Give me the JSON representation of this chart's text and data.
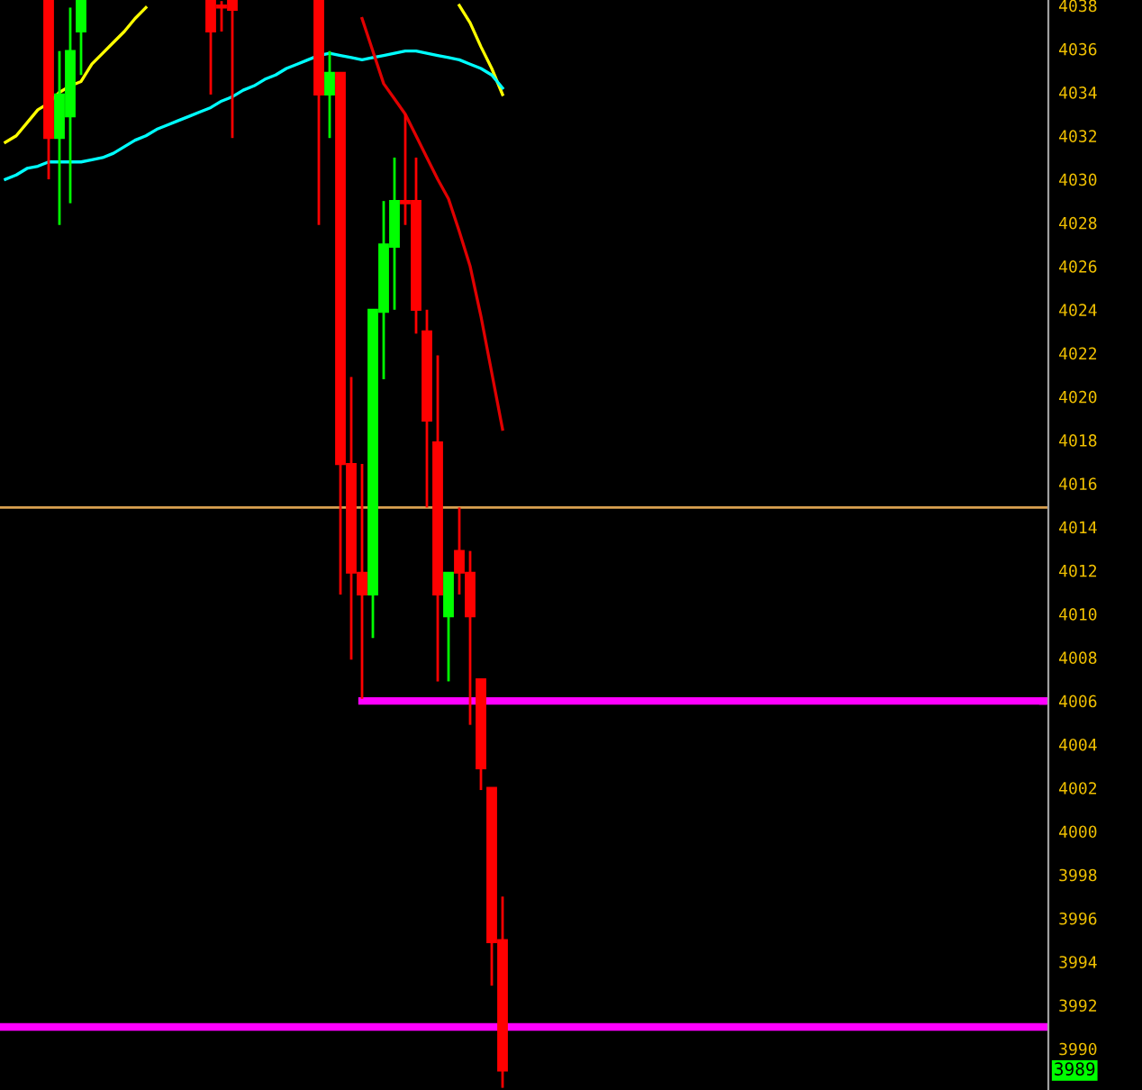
{
  "chart_data": {
    "type": "candlestick",
    "categories": [
      null,
      null,
      null,
      null,
      null,
      null,
      null,
      null,
      null,
      null,
      null,
      null,
      null,
      null,
      null,
      null,
      null,
      null,
      null,
      null,
      null,
      null,
      null,
      null,
      null,
      null,
      null,
      null,
      null,
      null,
      null,
      null,
      null,
      null,
      null,
      null,
      null,
      null,
      null,
      null,
      null,
      null,
      null,
      null,
      null,
      null,
      null,
      null,
      null,
      null,
      null,
      null,
      null,
      null,
      null,
      null,
      null,
      null,
      null,
      null,
      null,
      null,
      null,
      null,
      null,
      null,
      null,
      null,
      null,
      null,
      null,
      null,
      null,
      null,
      null,
      null,
      null,
      null,
      null,
      null,
      null,
      null,
      null,
      null,
      null,
      null,
      null,
      null,
      null,
      null,
      null,
      null,
      null,
      null,
      null,
      null,
      null
    ],
    "ohlc": [
      null,
      null,
      null,
      null,
      [
        4038.2,
        4038.2,
        4030.0,
        4031.9
      ],
      [
        4031.9,
        4035.9,
        4027.9,
        4033.9
      ],
      [
        4032.9,
        4037.9,
        4028.9,
        4035.9
      ],
      [
        4036.8,
        4038.2,
        4034.8,
        4038.2
      ],
      null,
      null,
      null,
      null,
      null,
      null,
      null,
      null,
      null,
      null,
      null,
      [
        4038.2,
        4038.2,
        4033.9,
        4036.8
      ],
      [
        4038.0,
        4038.2,
        4036.8,
        4037.9
      ],
      [
        4038.2,
        4038.2,
        4031.9,
        4037.8
      ],
      null,
      null,
      null,
      null,
      null,
      null,
      null,
      [
        4038.2,
        4038.2,
        4027.9,
        4033.9
      ],
      [
        4033.9,
        4035.9,
        4031.9,
        4034.9
      ],
      [
        4034.9,
        4034.9,
        4010.9,
        4016.9
      ],
      [
        4016.9,
        4020.9,
        4007.9,
        4011.9
      ],
      [
        4011.9,
        4016.9,
        4006.1,
        4010.9
      ],
      [
        4010.9,
        4024.0,
        4008.9,
        4024.0
      ],
      [
        4023.9,
        4029.0,
        4020.8,
        4027.0
      ],
      [
        4026.9,
        4031.0,
        4024.0,
        4029.0
      ],
      [
        4029.0,
        4033.0,
        4027.9,
        4028.9
      ],
      [
        4029.0,
        4031.0,
        4022.9,
        4024.0
      ],
      [
        4023.0,
        4024.0,
        4014.9,
        4018.9
      ],
      [
        4017.9,
        4021.9,
        4006.9,
        4010.9
      ],
      [
        4009.9,
        4011.9,
        4006.9,
        4011.9
      ],
      [
        4012.9,
        4014.9,
        4010.9,
        4011.9
      ],
      [
        4011.9,
        4012.9,
        4004.9,
        4009.9
      ],
      [
        4007.0,
        4007.0,
        4001.9,
        4002.9
      ],
      [
        4002.0,
        4002.0,
        3992.9,
        3994.9
      ],
      [
        3995.0,
        3997.0,
        3988.2,
        3989
      ],
      null,
      null,
      null,
      null,
      null,
      null,
      null,
      null,
      null,
      null,
      null,
      null,
      null,
      null,
      null,
      null,
      null,
      null,
      null,
      null,
      null,
      null,
      null,
      null,
      null,
      null,
      null,
      null,
      null,
      null,
      null,
      null,
      null,
      null,
      null,
      null,
      null,
      null,
      null,
      null,
      null,
      null,
      null,
      null,
      null,
      null,
      null,
      null,
      null,
      null
    ],
    "series": [
      {
        "type": "line",
        "color": "#ffff00",
        "values": [
          4031.7,
          4032.0,
          4032.6,
          4033.2,
          4033.5,
          4034.0,
          4034.3,
          4034.5,
          4035.3,
          4035.8,
          4036.3,
          4036.8,
          4037.4,
          4037.9,
          null,
          null,
          null,
          null,
          null,
          null,
          null,
          null,
          null,
          null,
          null,
          null,
          null,
          null,
          null,
          null,
          null,
          null,
          null,
          null,
          null,
          null,
          null,
          null,
          null,
          null,
          null,
          null,
          4038.0,
          4037.2,
          4036.1,
          4035.1,
          4033.9,
          null,
          null,
          null,
          null,
          null,
          null,
          null,
          null,
          null,
          null,
          null,
          null,
          null,
          null,
          null,
          null,
          null,
          null,
          null,
          null,
          null,
          null,
          null,
          null,
          null,
          null,
          null,
          null,
          null,
          null,
          null,
          null,
          null,
          null,
          null,
          null,
          null,
          null,
          null,
          null,
          null,
          null,
          null,
          null,
          null,
          null,
          null,
          null,
          null,
          null
        ]
      },
      {
        "type": "line",
        "color": "#00ffff",
        "values": [
          4030.0,
          4030.2,
          4030.5,
          4030.6,
          4030.8,
          4030.8,
          4030.8,
          4030.8,
          4030.9,
          4031.0,
          4031.2,
          4031.5,
          4031.8,
          4032.0,
          4032.3,
          4032.5,
          4032.7,
          4032.9,
          4033.1,
          4033.3,
          4033.6,
          4033.8,
          4034.1,
          4034.3,
          4034.6,
          4034.8,
          4035.1,
          4035.3,
          4035.5,
          4035.7,
          4035.8,
          4035.7,
          4035.6,
          4035.5,
          4035.6,
          4035.7,
          4035.8,
          4035.9,
          4035.9,
          4035.8,
          4035.7,
          4035.6,
          4035.5,
          4035.3,
          4035.1,
          4034.8,
          4034.2,
          null,
          null,
          null,
          null,
          null,
          null,
          null,
          null,
          null,
          null,
          null,
          null,
          null,
          null,
          null,
          null,
          null,
          null,
          null,
          null,
          null,
          null,
          null,
          null,
          null,
          null,
          null,
          null,
          null,
          null,
          null,
          null,
          null,
          null,
          null,
          null,
          null,
          null,
          null,
          null,
          null,
          null,
          null,
          null,
          null,
          null,
          null,
          null,
          null,
          null
        ]
      },
      {
        "type": "line",
        "color": "#e00000",
        "values": [
          null,
          null,
          null,
          null,
          null,
          null,
          null,
          null,
          null,
          null,
          null,
          null,
          null,
          null,
          null,
          null,
          null,
          null,
          null,
          null,
          null,
          null,
          null,
          null,
          null,
          null,
          null,
          null,
          null,
          null,
          null,
          null,
          null,
          4037.4,
          4035.9,
          4034.4,
          4033.7,
          4033.0,
          4032.0,
          4031.0,
          4030.0,
          4029.1,
          4027.6,
          4026.0,
          4023.7,
          4021.1,
          4018.5,
          null,
          null,
          null,
          null,
          null,
          null,
          null,
          null,
          null,
          null,
          null,
          null,
          null,
          null,
          null,
          null,
          null,
          null,
          null,
          null,
          null,
          null,
          null,
          null,
          null,
          null,
          null,
          null,
          null,
          null,
          null,
          null,
          null,
          null,
          null,
          null,
          null,
          null,
          null,
          null,
          null,
          null,
          null,
          null,
          null,
          null,
          null,
          null,
          null,
          null
        ]
      },
      {
        "type": "line",
        "color": "#ff00ff",
        "values": [
          null,
          null,
          null,
          null,
          null,
          null,
          null,
          null,
          null,
          null,
          null,
          null,
          null,
          null,
          null,
          null,
          null,
          null,
          null,
          null,
          null,
          null,
          null,
          null,
          null,
          null,
          null,
          null,
          null,
          null,
          null,
          null,
          null,
          4006.0,
          4006.0,
          4006.0,
          4006.0,
          4006.0,
          4006.0,
          4006.0,
          4006.0,
          4006.0,
          4006.0,
          4006.0,
          4006.0,
          4006.0,
          4006.0,
          4006.0,
          4006.0,
          4006.0,
          4006.0,
          4006.0,
          4006.0,
          4006.0,
          4006.0,
          4006.0,
          4006.0,
          4006.0,
          4006.0,
          4006.0,
          4006.0,
          4006.0,
          4006.0,
          4006.0,
          4006.0,
          4006.0,
          4006.0,
          4006.0,
          4006.0,
          4006.0,
          4006.0,
          4006.0,
          4006.0,
          4006.0,
          4006.0,
          4006.0,
          4006.0,
          4006.0,
          4006.0,
          4006.0,
          4006.0,
          4006.0,
          4006.0,
          4006.0,
          4006.0,
          4006.0,
          4006.0,
          4006.0,
          4006.0,
          4006.0,
          4006.0,
          4006.0,
          4006.0,
          4006.0,
          4006.0,
          4006.0,
          4006.0
        ]
      }
    ],
    "ref_lines": [
      {
        "axis": "y",
        "value": 4014.9,
        "color": "#d9a050"
      },
      {
        "axis": "y",
        "value": 3991.0,
        "color": "#ff00ff"
      }
    ],
    "annotations": [
      {
        "text": "3989",
        "y": 3989
      }
    ],
    "ylim": [
      3988.1,
      4038.25
    ],
    "yticks": [
      3990,
      3992,
      3994,
      3996,
      3998,
      4000,
      4002,
      4004,
      4006,
      4008,
      4010,
      4012,
      4014,
      4016,
      4018,
      4020,
      4022,
      4024,
      4026,
      4028,
      4030,
      4032,
      4034,
      4036,
      4038
    ],
    "tick_labels": "y",
    "grid": false,
    "legend": false
  }
}
